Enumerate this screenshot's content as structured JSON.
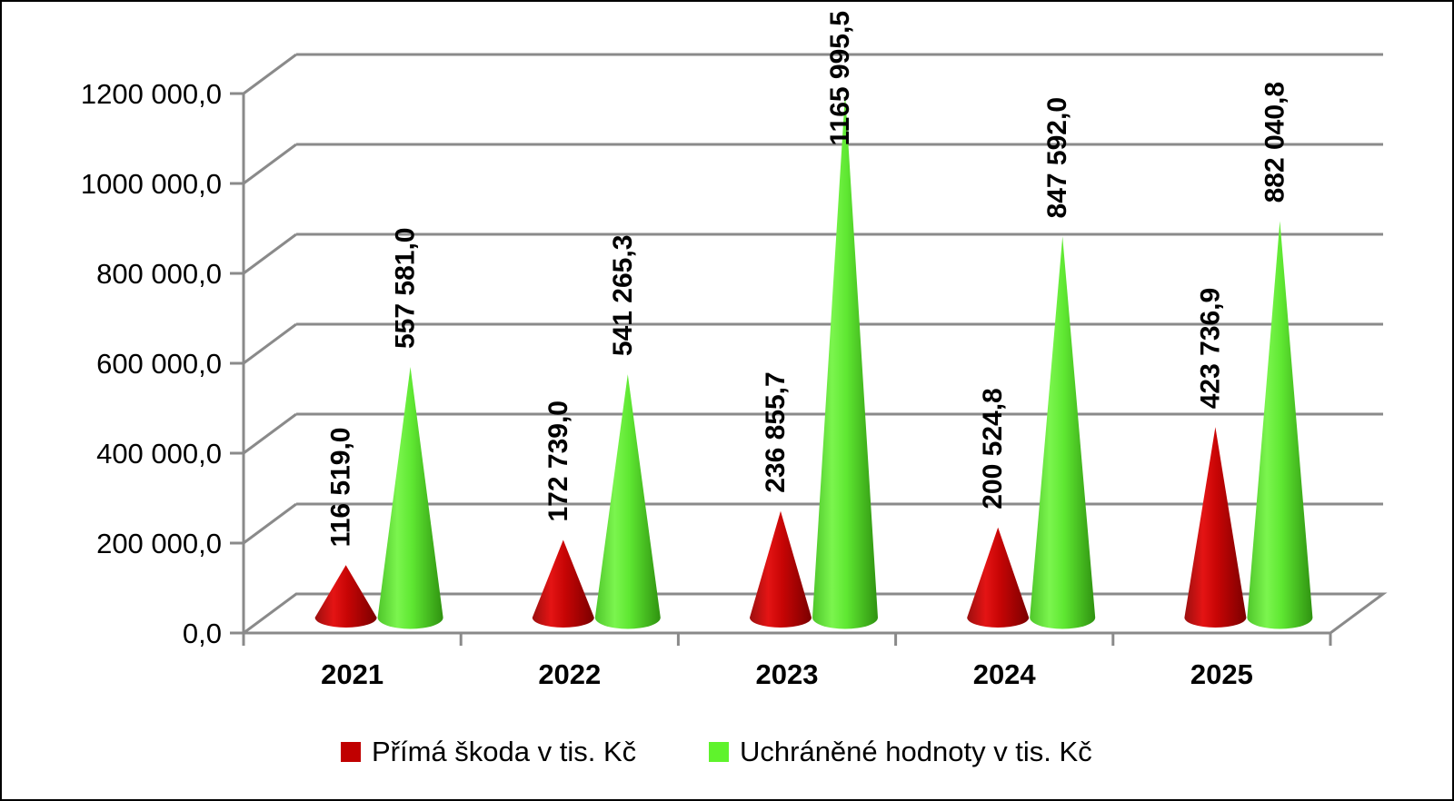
{
  "chart_data": {
    "type": "bar",
    "shape": "cone-3d",
    "title": "",
    "xlabel": "",
    "ylabel": "",
    "categories": [
      "2021",
      "2022",
      "2023",
      "2024",
      "2025"
    ],
    "series": [
      {
        "name": "Přímá škoda v tis. Kč",
        "color": "#C00000",
        "gradient": [
          "#9C0F0F",
          "#E41414",
          "#C80505",
          "#7A0000"
        ],
        "values": [
          116519.0,
          172739.0,
          236855.7,
          200524.8,
          423736.9
        ],
        "labels": [
          "116 519,0",
          "172 739,0",
          "236 855,7",
          "200 524,8",
          "423 736,9"
        ]
      },
      {
        "name": "Uchráněné hodnoty v tis. Kč",
        "color": "#5FF32C",
        "gradient": [
          "#4FC62B",
          "#7BF54E",
          "#5FE832",
          "#2F9210"
        ],
        "values": [
          557581.0,
          541265.3,
          1165995.5,
          847592.0,
          882040.8
        ],
        "labels": [
          "557 581,0",
          "541 265,3",
          "1165 995,5",
          "847 592,0",
          "882 040,8"
        ]
      }
    ],
    "y_axis": {
      "min": 0,
      "max": 1200000,
      "step": 200000,
      "tick_labels": [
        "0,0",
        "200 000,0",
        "400 000,0",
        "600 000,0",
        "800 000,0",
        "1000 000,0",
        "1200 000,0"
      ]
    },
    "grid": true,
    "legend_position": "bottom",
    "axis_color": "#8A8A8A",
    "text_color": "#000000"
  }
}
